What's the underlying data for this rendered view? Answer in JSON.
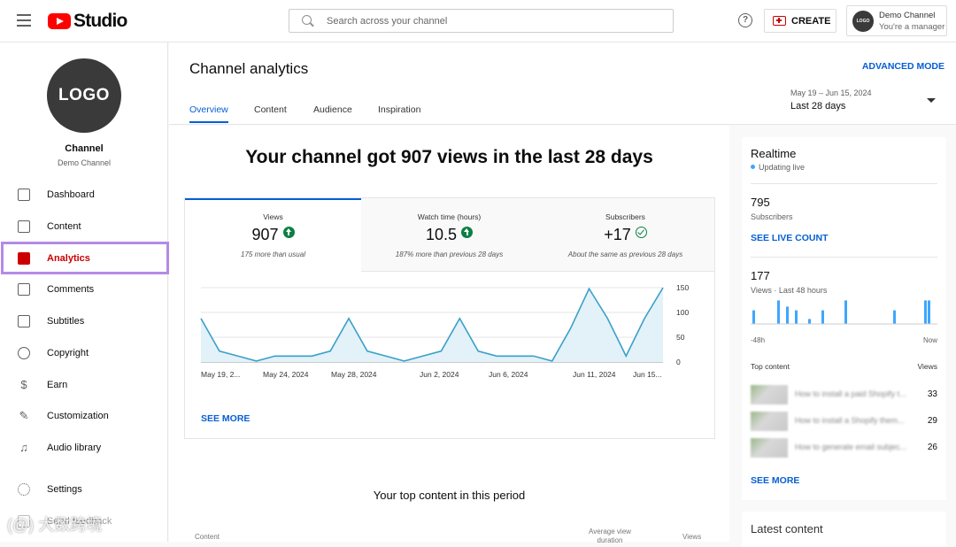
{
  "topbar": {
    "brand": "Studio",
    "search_placeholder": "Search across your channel",
    "help": "?",
    "create_label": "CREATE",
    "account_name": "Demo Channel",
    "account_role": "You're a manager",
    "avatar_text": "LOGO"
  },
  "sidebar": {
    "avatar_text": "LOGO",
    "channel_title": "Channel",
    "channel_sub": "Demo Channel",
    "items": [
      {
        "label": "Dashboard",
        "icon": "dashboard-icon"
      },
      {
        "label": "Content",
        "icon": "content-icon"
      },
      {
        "label": "Analytics",
        "icon": "analytics-icon",
        "active": true
      },
      {
        "label": "Comments",
        "icon": "comments-icon"
      },
      {
        "label": "Subtitles",
        "icon": "subtitles-icon"
      },
      {
        "label": "Copyright",
        "icon": "copyright-icon"
      },
      {
        "label": "Earn",
        "icon": "earn-icon"
      },
      {
        "label": "Customization",
        "icon": "customization-icon"
      },
      {
        "label": "Audio library",
        "icon": "audio-library-icon"
      },
      {
        "label": "Settings",
        "icon": "settings-icon"
      },
      {
        "label": "Send feedback",
        "icon": "feedback-icon"
      }
    ]
  },
  "header": {
    "title": "Channel analytics",
    "advanced_mode": "ADVANCED MODE",
    "tabs": [
      "Overview",
      "Content",
      "Audience",
      "Inspiration"
    ],
    "active_tab": "Overview",
    "date_range": "May 19 – Jun 15, 2024",
    "date_label": "Last 28 days"
  },
  "overview": {
    "headline": "Your channel got 907 views in the last 28 days",
    "stats": [
      {
        "label": "Views",
        "value": "907",
        "note": "175 more than usual",
        "indicator": "up-arrow-icon"
      },
      {
        "label": "Watch time (hours)",
        "value": "10.5",
        "note": "187% more than previous 28 days",
        "indicator": "up-arrow-icon"
      },
      {
        "label": "Subscribers",
        "value": "+17",
        "note": "About the same as previous 28 days",
        "indicator": "check-icon"
      }
    ],
    "see_more": "SEE MORE",
    "top_content_title": "Your top content in this period",
    "table_columns": [
      "Content",
      "Average view duration",
      "Views"
    ]
  },
  "chart_data": {
    "type": "area",
    "x_labels": [
      "May 19, 2...",
      "May 24, 2024",
      "May 28, 2024",
      "Jun 2, 2024",
      "Jun 6, 2024",
      "Jun 11, 2024",
      "Jun 15..."
    ],
    "y_ticks": [
      150,
      100,
      50,
      0
    ],
    "ylim": [
      0,
      150
    ],
    "series": [
      {
        "values": [
          88,
          22,
          12,
          2,
          12,
          12,
          12,
          22,
          88,
          22,
          12,
          2,
          12,
          22,
          88,
          22,
          12,
          12,
          12,
          2,
          68,
          148,
          88,
          12,
          88,
          150
        ]
      }
    ],
    "colors": {
      "line": "#3aa0c8",
      "fill": "#e3f1f8",
      "grid": "#e5e5e5"
    },
    "grid": true
  },
  "realtime": {
    "title": "Realtime",
    "status": "Updating live",
    "subscribers_value": "795",
    "subscribers_label": "Subscribers",
    "see_live_count": "SEE LIVE COUNT",
    "views_value": "177",
    "views_label": "Views · Last 48 hours",
    "axis_start": "-48h",
    "axis_end": "Now",
    "bars": [
      0.55,
      0.95,
      0.7,
      0.55,
      0.2,
      0.55,
      0.95,
      0.55,
      0.95,
      0.95,
      0.55,
      0.95,
      0.55
    ],
    "top_content_label": "Top content",
    "views_col_label": "Views",
    "top_content": [
      {
        "title": "How to install a paid Shopify t...",
        "views": "33"
      },
      {
        "title": "How to install a Shopify them...",
        "views": "29"
      },
      {
        "title": "How to generate email subjec...",
        "views": "26"
      }
    ],
    "see_more": "SEE MORE"
  },
  "latest_content": {
    "title": "Latest content"
  },
  "watermark": "(@) 大数跨境"
}
